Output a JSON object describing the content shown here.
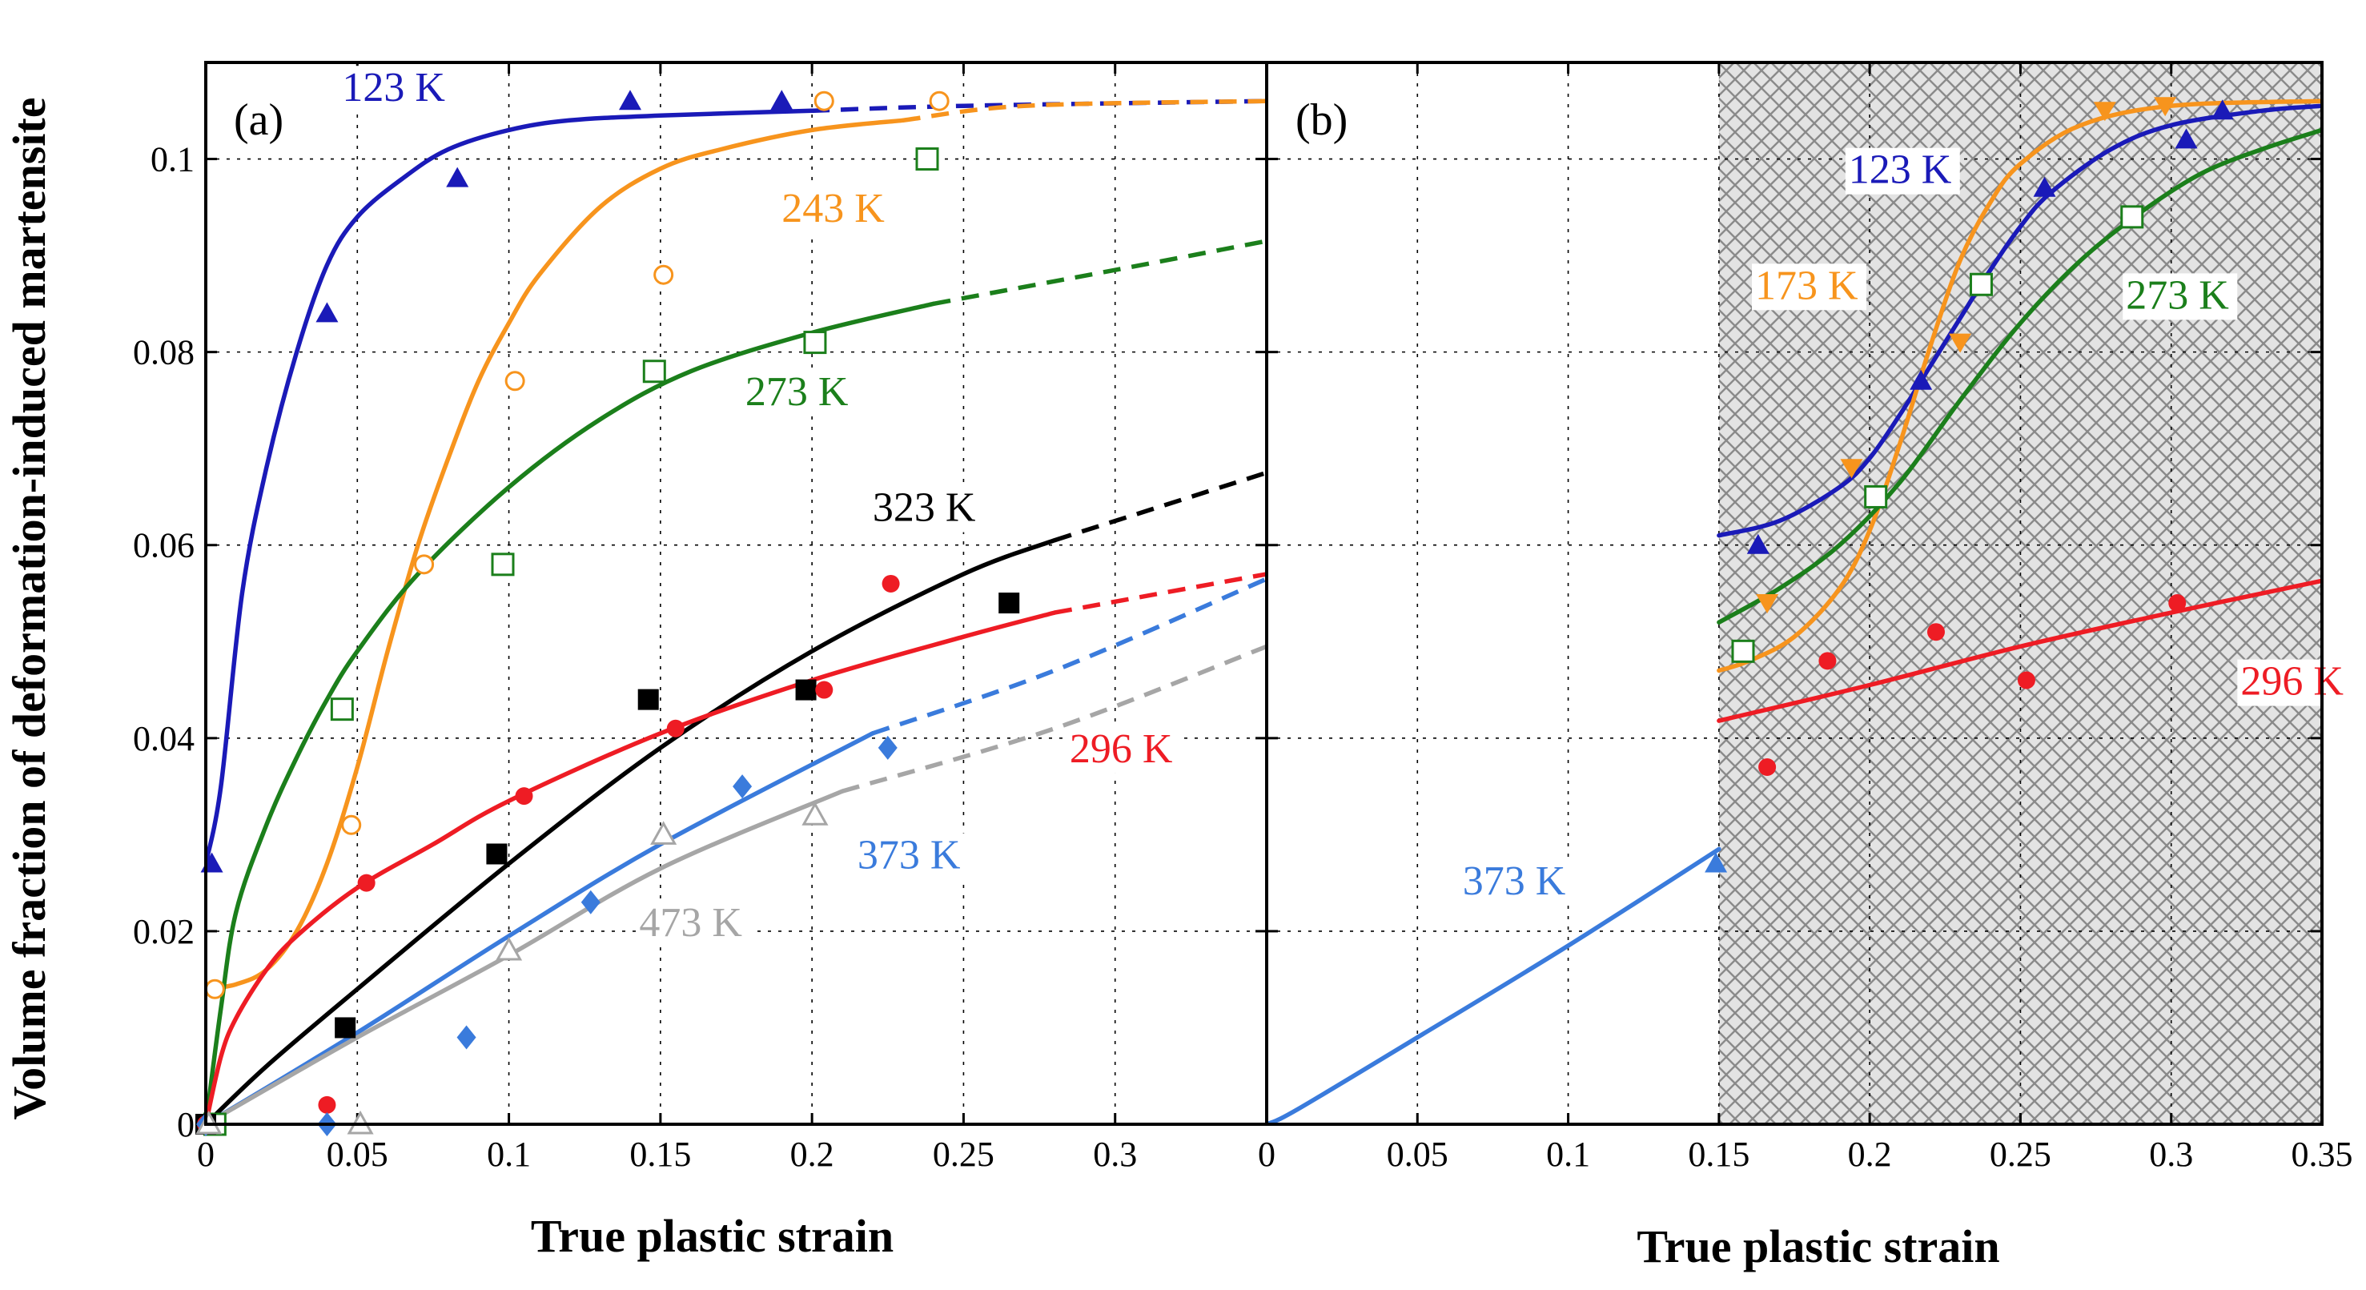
{
  "y_axis_title": "Volume fraction of deformation-induced martensite",
  "colors": {
    "123 K": "#1a1ab8",
    "173 K": "#f7941d",
    "243 K": "#f7941d",
    "273 K": "#1b7f1b",
    "323 K": "#000000",
    "296 K": "#ee1c24",
    "373 K": "#3a7bdc",
    "473 K": "#a6a6a6"
  },
  "chart_data": [
    {
      "type": "scatter",
      "panel": "(a)",
      "xlabel": "True plastic strain",
      "ylabel": "Volume fraction of deformation-induced martensite",
      "xlim": [
        0,
        0.35
      ],
      "ylim": [
        0,
        0.11
      ],
      "x_ticks": [
        "0",
        "0.05",
        "0.1",
        "0.15",
        "0.2",
        "0.25",
        "0.3"
      ],
      "y_ticks": [
        "0",
        "0.02",
        "0.04",
        "0.06",
        "0.08",
        "0.1"
      ],
      "grid": true,
      "series": [
        {
          "name": "123 K",
          "marker": "triangle-filled",
          "label_at": [
            0.045,
            0.106
          ],
          "points": [
            [
              0.002,
              0.027
            ],
            [
              0.04,
              0.084
            ],
            [
              0.083,
              0.098
            ],
            [
              0.14,
              0.106
            ],
            [
              0.19,
              0.106
            ]
          ],
          "fit": [
            [
              0,
              0.027
            ],
            [
              0.005,
              0.035
            ],
            [
              0.012,
              0.055
            ],
            [
              0.02,
              0.068
            ],
            [
              0.03,
              0.08
            ],
            [
              0.04,
              0.089
            ],
            [
              0.05,
              0.094
            ],
            [
              0.065,
              0.098
            ],
            [
              0.08,
              0.101
            ],
            [
              0.1,
              0.103
            ],
            [
              0.12,
              0.104
            ],
            [
              0.15,
              0.1045
            ],
            [
              0.2,
              0.105
            ]
          ],
          "extrapolation": [
            [
              0.2,
              0.105
            ],
            [
              0.25,
              0.1055
            ],
            [
              0.35,
              0.106
            ]
          ]
        },
        {
          "name": "243 K",
          "marker": "circle-open",
          "label_at": [
            0.19,
            0.0935
          ],
          "points": [
            [
              0.003,
              0.014
            ],
            [
              0.048,
              0.031
            ],
            [
              0.072,
              0.058
            ],
            [
              0.102,
              0.077
            ],
            [
              0.151,
              0.088
            ],
            [
              0.204,
              0.106
            ],
            [
              0.242,
              0.106
            ]
          ],
          "fit": [
            [
              0,
              0.014
            ],
            [
              0.01,
              0.0145
            ],
            [
              0.02,
              0.016
            ],
            [
              0.03,
              0.02
            ],
            [
              0.04,
              0.027
            ],
            [
              0.05,
              0.037
            ],
            [
              0.06,
              0.049
            ],
            [
              0.07,
              0.06
            ],
            [
              0.08,
              0.069
            ],
            [
              0.09,
              0.077
            ],
            [
              0.1,
              0.083
            ],
            [
              0.11,
              0.088
            ],
            [
              0.13,
              0.095
            ],
            [
              0.15,
              0.099
            ],
            [
              0.17,
              0.101
            ],
            [
              0.2,
              0.103
            ],
            [
              0.23,
              0.104
            ]
          ],
          "extrapolation": [
            [
              0.23,
              0.104
            ],
            [
              0.27,
              0.1055
            ],
            [
              0.35,
              0.106
            ]
          ]
        },
        {
          "name": "273 K",
          "marker": "square-open",
          "label_at": [
            0.178,
            0.0745
          ],
          "points": [
            [
              0.003,
              0.0
            ],
            [
              0.045,
              0.043
            ],
            [
              0.098,
              0.058
            ],
            [
              0.148,
              0.078
            ],
            [
              0.201,
              0.081
            ],
            [
              0.238,
              0.1
            ]
          ],
          "fit": [
            [
              0,
              0.0
            ],
            [
              0.005,
              0.012
            ],
            [
              0.01,
              0.022
            ],
            [
              0.02,
              0.031
            ],
            [
              0.03,
              0.038
            ],
            [
              0.04,
              0.044
            ],
            [
              0.05,
              0.049
            ],
            [
              0.07,
              0.057
            ],
            [
              0.1,
              0.066
            ],
            [
              0.13,
              0.073
            ],
            [
              0.16,
              0.078
            ],
            [
              0.2,
              0.082
            ],
            [
              0.24,
              0.085
            ]
          ],
          "extrapolation": [
            [
              0.24,
              0.085
            ],
            [
              0.3,
              0.0885
            ],
            [
              0.35,
              0.0915
            ]
          ]
        },
        {
          "name": "323 K",
          "marker": "square-filled",
          "label_at": [
            0.22,
            0.0625
          ],
          "points": [
            [
              0.0,
              0.0
            ],
            [
              0.046,
              0.01
            ],
            [
              0.096,
              0.028
            ],
            [
              0.146,
              0.044
            ],
            [
              0.198,
              0.045
            ],
            [
              0.265,
              0.054
            ]
          ],
          "fit": [
            [
              0,
              0.0
            ],
            [
              0.02,
              0.006
            ],
            [
              0.05,
              0.014
            ],
            [
              0.1,
              0.027
            ],
            [
              0.15,
              0.039
            ],
            [
              0.2,
              0.049
            ],
            [
              0.25,
              0.057
            ],
            [
              0.28,
              0.0605
            ]
          ],
          "extrapolation": [
            [
              0.28,
              0.0605
            ],
            [
              0.35,
              0.0675
            ]
          ]
        },
        {
          "name": "296 K",
          "marker": "circle-filled",
          "label_at": [
            0.285,
            0.0375
          ],
          "points": [
            [
              0.0,
              0.0
            ],
            [
              0.04,
              0.002
            ],
            [
              0.053,
              0.025
            ],
            [
              0.105,
              0.034
            ],
            [
              0.155,
              0.041
            ],
            [
              0.204,
              0.045
            ],
            [
              0.226,
              0.056
            ]
          ],
          "fit": [
            [
              0,
              0.0
            ],
            [
              0.005,
              0.007
            ],
            [
              0.01,
              0.011
            ],
            [
              0.02,
              0.016
            ],
            [
              0.03,
              0.0195
            ],
            [
              0.05,
              0.0245
            ],
            [
              0.075,
              0.029
            ],
            [
              0.1,
              0.0335
            ],
            [
              0.15,
              0.0405
            ],
            [
              0.2,
              0.046
            ],
            [
              0.25,
              0.0505
            ],
            [
              0.28,
              0.053
            ]
          ],
          "extrapolation": [
            [
              0.28,
              0.053
            ],
            [
              0.35,
              0.057
            ]
          ]
        },
        {
          "name": "373 K",
          "marker": "diamond-filled",
          "label_at": [
            0.215,
            0.0265
          ],
          "points": [
            [
              0.0,
              0.0
            ],
            [
              0.04,
              0.0
            ],
            [
              0.086,
              0.009
            ],
            [
              0.127,
              0.023
            ],
            [
              0.177,
              0.035
            ],
            [
              0.225,
              0.039
            ]
          ],
          "fit": [
            [
              0,
              0.0
            ],
            [
              0.05,
              0.0095
            ],
            [
              0.1,
              0.0195
            ],
            [
              0.15,
              0.029
            ],
            [
              0.22,
              0.0405
            ]
          ],
          "extrapolation": [
            [
              0.22,
              0.0405
            ],
            [
              0.28,
              0.047
            ],
            [
              0.35,
              0.0565
            ]
          ]
        },
        {
          "name": "473 K",
          "marker": "triangle-open",
          "label_at": [
            0.143,
            0.0195
          ],
          "points": [
            [
              0.001,
              0.0
            ],
            [
              0.051,
              0.0
            ],
            [
              0.1,
              0.018
            ],
            [
              0.151,
              0.03
            ],
            [
              0.201,
              0.032
            ]
          ],
          "fit": [
            [
              0,
              0.0
            ],
            [
              0.05,
              0.009
            ],
            [
              0.1,
              0.0175
            ],
            [
              0.15,
              0.0265
            ],
            [
              0.21,
              0.0345
            ]
          ],
          "extrapolation": [
            [
              0.21,
              0.0345
            ],
            [
              0.28,
              0.041
            ],
            [
              0.35,
              0.0495
            ]
          ]
        }
      ]
    },
    {
      "type": "scatter",
      "panel": "(b)",
      "xlabel": "True plastic strain",
      "xlim": [
        0,
        0.35
      ],
      "ylim": [
        0,
        0.11
      ],
      "x_ticks": [
        "0",
        "0.05",
        "0.1",
        "0.15",
        "0.2",
        "0.25",
        "0.3",
        "0.35"
      ],
      "grid": true,
      "hatched_region": [
        0.15,
        0.35
      ],
      "series": [
        {
          "name": "123 K",
          "marker": "triangle-filled",
          "label_at": [
            0.193,
            0.0975
          ],
          "points": [
            [
              0.163,
              0.06
            ],
            [
              0.217,
              0.077
            ],
            [
              0.258,
              0.097
            ],
            [
              0.305,
              0.102
            ],
            [
              0.317,
              0.105
            ]
          ],
          "fit": [
            [
              0.15,
              0.061
            ],
            [
              0.17,
              0.0625
            ],
            [
              0.19,
              0.066
            ],
            [
              0.2,
              0.069
            ],
            [
              0.21,
              0.0735
            ],
            [
              0.22,
              0.0785
            ],
            [
              0.23,
              0.0835
            ],
            [
              0.24,
              0.0885
            ],
            [
              0.25,
              0.093
            ],
            [
              0.26,
              0.0965
            ],
            [
              0.28,
              0.101
            ],
            [
              0.3,
              0.1035
            ],
            [
              0.33,
              0.105
            ],
            [
              0.35,
              0.1055
            ]
          ]
        },
        {
          "name": "173 K",
          "marker": "triangle-down-filled",
          "label_at": [
            0.162,
            0.0855
          ],
          "points": [
            [
              0.166,
              0.054
            ],
            [
              0.194,
              0.068
            ],
            [
              0.23,
              0.081
            ],
            [
              0.278,
              0.105
            ],
            [
              0.298,
              0.1055
            ]
          ],
          "fit": [
            [
              0.15,
              0.047
            ],
            [
              0.16,
              0.048
            ],
            [
              0.175,
              0.0505
            ],
            [
              0.19,
              0.0555
            ],
            [
              0.2,
              0.0615
            ],
            [
              0.21,
              0.0705
            ],
            [
              0.22,
              0.0805
            ],
            [
              0.23,
              0.0895
            ],
            [
              0.24,
              0.0955
            ],
            [
              0.25,
              0.0995
            ],
            [
              0.27,
              0.1035
            ],
            [
              0.3,
              0.1055
            ],
            [
              0.35,
              0.106
            ]
          ]
        },
        {
          "name": "273 K",
          "marker": "square-open",
          "label_at": [
            0.285,
            0.0845
          ],
          "points": [
            [
              0.158,
              0.049
            ],
            [
              0.202,
              0.065
            ],
            [
              0.237,
              0.087
            ],
            [
              0.287,
              0.094
            ]
          ],
          "fit": [
            [
              0.15,
              0.052
            ],
            [
              0.17,
              0.0555
            ],
            [
              0.19,
              0.06
            ],
            [
              0.21,
              0.0665
            ],
            [
              0.23,
              0.075
            ],
            [
              0.25,
              0.083
            ],
            [
              0.27,
              0.0895
            ],
            [
              0.29,
              0.0945
            ],
            [
              0.31,
              0.0985
            ],
            [
              0.33,
              0.101
            ],
            [
              0.35,
              0.103
            ]
          ]
        },
        {
          "name": "296 K",
          "marker": "circle-filled",
          "label_at": [
            0.323,
            0.0445
          ],
          "points": [
            [
              0.166,
              0.037
            ],
            [
              0.186,
              0.048
            ],
            [
              0.222,
              0.051
            ],
            [
              0.252,
              0.046
            ],
            [
              0.302,
              0.054
            ]
          ],
          "fit": [
            [
              0.15,
              0.0418
            ],
            [
              0.2,
              0.0455
            ],
            [
              0.25,
              0.0495
            ],
            [
              0.3,
              0.053
            ],
            [
              0.35,
              0.0563
            ]
          ]
        },
        {
          "name": "373 K",
          "marker": "triangle-filled",
          "label_at": [
            0.065,
            0.0238
          ],
          "points": [
            [
              0.149,
              0.027
            ]
          ],
          "fit": [
            [
              0,
              0.0
            ],
            [
              0.01,
              0.0015
            ],
            [
              0.05,
              0.009
            ],
            [
              0.1,
              0.0185
            ],
            [
              0.15,
              0.0285
            ]
          ]
        }
      ]
    }
  ]
}
